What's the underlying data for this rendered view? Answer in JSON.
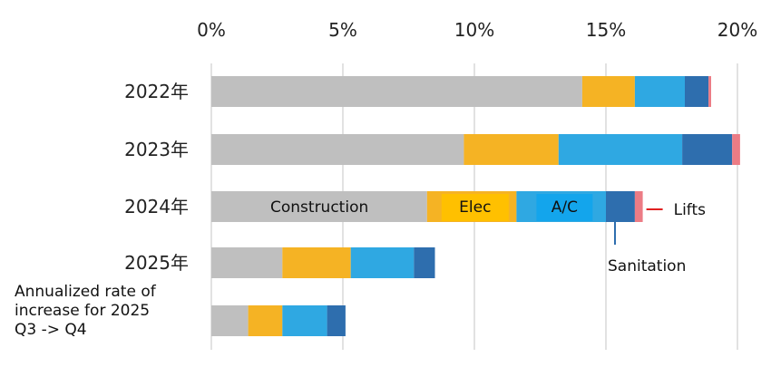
{
  "chart_data": {
    "type": "bar",
    "orientation": "horizontal",
    "stacked": true,
    "title": "",
    "xlabel": "",
    "ylabel": "",
    "xlim": [
      0,
      20
    ],
    "x_ticks": [
      "0%",
      "5%",
      "10%",
      "15%",
      "20%"
    ],
    "grid": "vertical",
    "legend": "none",
    "categories": [
      "2022年",
      "2023年",
      "2024年",
      "2025年",
      [
        "Annualized rate of",
        "increase for 2025",
        "Q3 -> Q4"
      ]
    ],
    "series": [
      {
        "name": "Construction",
        "color": "#bfbfbf",
        "values": [
          14.1,
          9.6,
          8.2,
          2.7,
          1.4
        ]
      },
      {
        "name": "Elec",
        "color": "#f5b324",
        "values": [
          2.0,
          3.6,
          3.4,
          2.6,
          1.3
        ]
      },
      {
        "name": "A/C",
        "color": "#2fa8e2",
        "values": [
          1.9,
          4.7,
          3.4,
          2.4,
          1.7
        ]
      },
      {
        "name": "Sanitation",
        "color": "#2e6eae",
        "values": [
          0.9,
          1.9,
          1.1,
          0.8,
          0.7
        ]
      },
      {
        "name": "Lifts",
        "color": "#ec7c85",
        "values": [
          0.1,
          0.3,
          0.3,
          0.0,
          0.0
        ]
      }
    ],
    "segment_labels": {
      "row": 2,
      "Construction": "Construction",
      "Elec": "Elec",
      "A/C": "A/C"
    },
    "annotations": [
      {
        "text": "Lifts",
        "series": "Lifts",
        "row": 2
      },
      {
        "text": "Sanitation",
        "series": "Sanitation",
        "row": 2
      }
    ]
  }
}
